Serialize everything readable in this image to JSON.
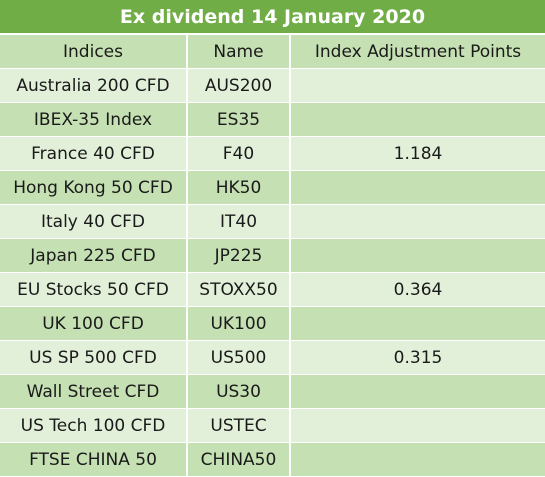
{
  "title": "Ex dividend 14 January 2020",
  "columns": [
    "Indices",
    "Name",
    "Index Adjustment Points"
  ],
  "rows": [
    {
      "index": "Australia 200 CFD",
      "name": "AUS200",
      "points": ""
    },
    {
      "index": "IBEX-35 Index",
      "name": "ES35",
      "points": ""
    },
    {
      "index": "France 40 CFD",
      "name": "F40",
      "points": "1.184"
    },
    {
      "index": "Hong Kong 50 CFD",
      "name": "HK50",
      "points": ""
    },
    {
      "index": "Italy 40 CFD",
      "name": "IT40",
      "points": ""
    },
    {
      "index": "Japan 225 CFD",
      "name": "JP225",
      "points": ""
    },
    {
      "index": "EU Stocks 50 CFD",
      "name": "STOXX50",
      "points": "0.364"
    },
    {
      "index": "UK 100 CFD",
      "name": "UK100",
      "points": ""
    },
    {
      "index": "US SP 500 CFD",
      "name": "US500",
      "points": "0.315"
    },
    {
      "index": "Wall Street CFD",
      "name": "US30",
      "points": ""
    },
    {
      "index": "US Tech 100 CFD",
      "name": "USTEC",
      "points": ""
    },
    {
      "index": "FTSE CHINA 50",
      "name": "CHINA50",
      "points": ""
    }
  ],
  "colors": {
    "header": "#70ad47",
    "band_light": "#e2efd9",
    "band_dark": "#c5e0b3"
  }
}
